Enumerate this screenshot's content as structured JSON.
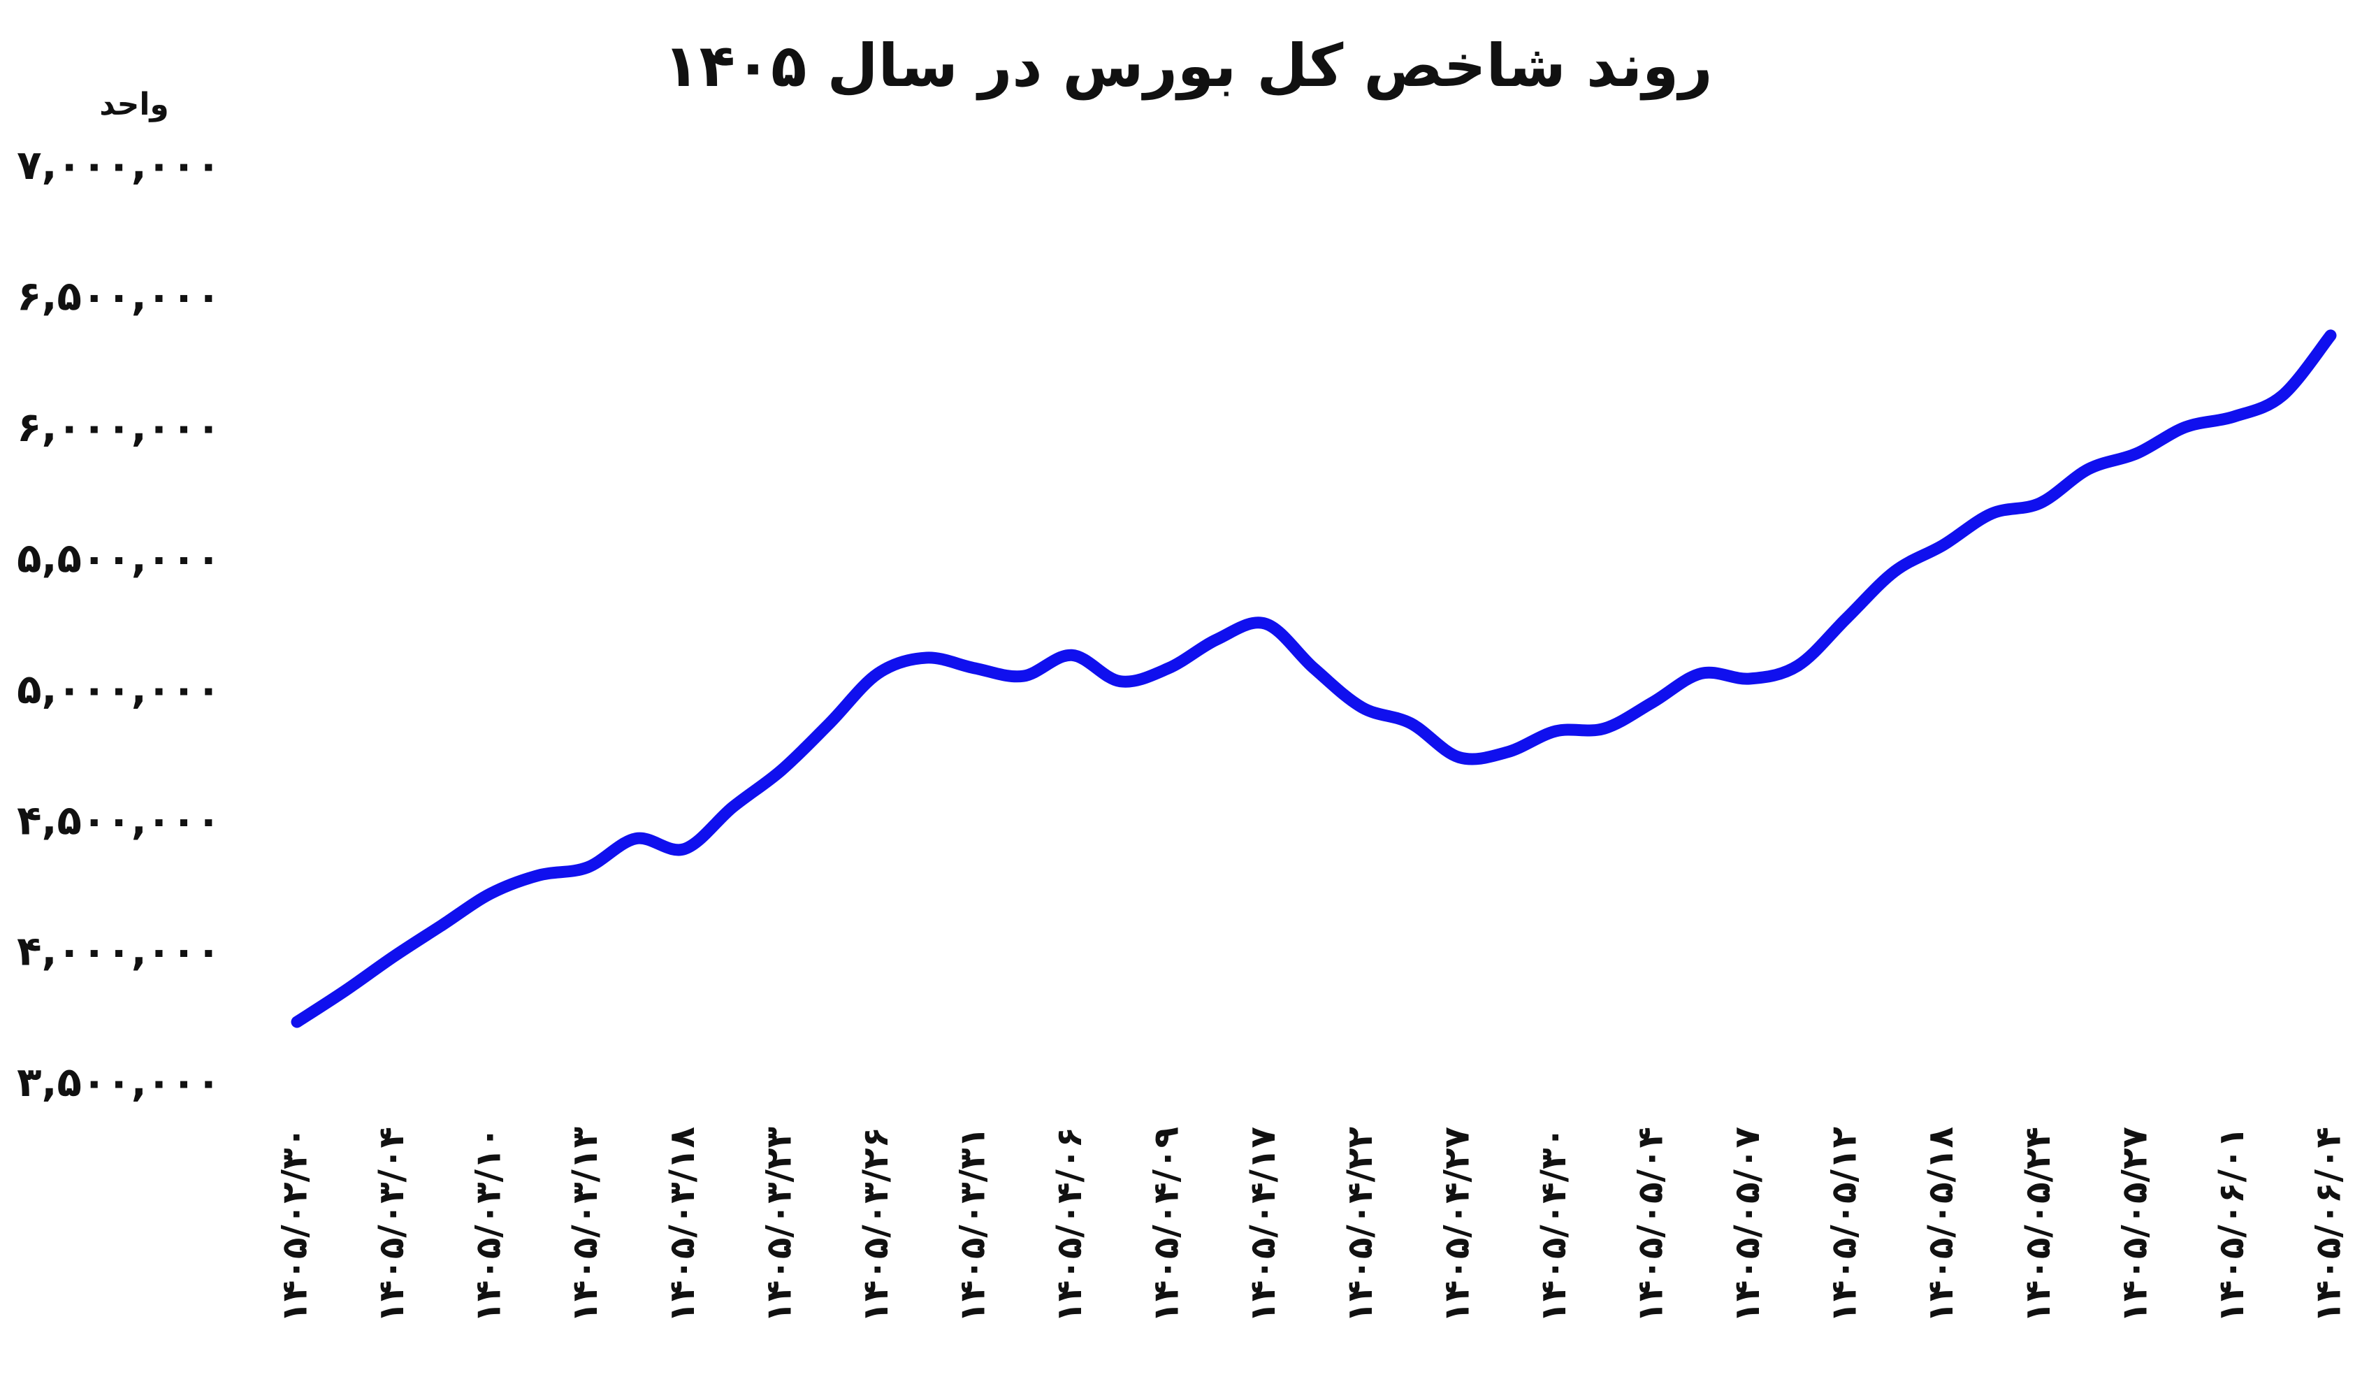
{
  "chart_data": {
    "type": "line",
    "title": "روند شاخص کل بورس در سال ۱۴۰۵",
    "y_label": "واحد",
    "categories": [
      "۱۴۰۵/۰۲/۳۰",
      null,
      "۱۴۰۵/۰۳/۰۴",
      null,
      "۱۴۰۵/۰۳/۱۰",
      null,
      "۱۴۰۵/۰۳/۱۳",
      null,
      "۱۴۰۵/۰۳/۱۸",
      null,
      "۱۴۰۵/۰۳/۲۳",
      null,
      "۱۴۰۵/۰۳/۲۶",
      null,
      "۱۴۰۵/۰۳/۳۱",
      null,
      "۱۴۰۵/۰۴/۰۶",
      null,
      "۱۴۰۵/۰۴/۰۹",
      null,
      "۱۴۰۵/۰۴/۱۷",
      null,
      "۱۴۰۵/۰۴/۲۲",
      null,
      "۱۴۰۵/۰۴/۲۷",
      null,
      "۱۴۰۵/۰۴/۳۰",
      null,
      "۱۴۰۵/۰۵/۰۴",
      null,
      "۱۴۰۵/۰۵/۰۷",
      null,
      "۱۴۰۵/۰۵/۱۲",
      null,
      "۱۴۰۵/۰۵/۱۸",
      null,
      "۱۴۰۵/۰۵/۲۴",
      null,
      "۱۴۰۵/۰۵/۲۷",
      null,
      "۱۴۰۵/۰۶/۰۱",
      null,
      "۱۴۰۵/۰۶/۰۴"
    ],
    "series": [
      {
        "name": "شاخص کل",
        "color": "#1010ee",
        "values": [
          3740000,
          3860000,
          3990000,
          4110000,
          4230000,
          4300000,
          4330000,
          4440000,
          4400000,
          4560000,
          4700000,
          4880000,
          5070000,
          5130000,
          5090000,
          5060000,
          5140000,
          5040000,
          5090000,
          5200000,
          5260000,
          5090000,
          4940000,
          4880000,
          4750000,
          4770000,
          4850000,
          4860000,
          4960000,
          5070000,
          5050000,
          5100000,
          5280000,
          5460000,
          5560000,
          5680000,
          5720000,
          5850000,
          5910000,
          6010000,
          6050000,
          6130000,
          6360000
        ]
      }
    ],
    "ylim": [
      3500000,
      7000000
    ],
    "yticks": [
      {
        "value": 3500000,
        "label": "۳,۵۰۰,۰۰۰"
      },
      {
        "value": 4000000,
        "label": "۴,۰۰۰,۰۰۰"
      },
      {
        "value": 4500000,
        "label": "۴,۵۰۰,۰۰۰"
      },
      {
        "value": 5000000,
        "label": "۵,۰۰۰,۰۰۰"
      },
      {
        "value": 5500000,
        "label": "۵,۵۰۰,۰۰۰"
      },
      {
        "value": 6000000,
        "label": "۶,۰۰۰,۰۰۰"
      },
      {
        "value": 6500000,
        "label": "۶,۵۰۰,۰۰۰"
      },
      {
        "value": 7000000,
        "label": "۷,۰۰۰,۰۰۰"
      }
    ],
    "grid": false
  }
}
